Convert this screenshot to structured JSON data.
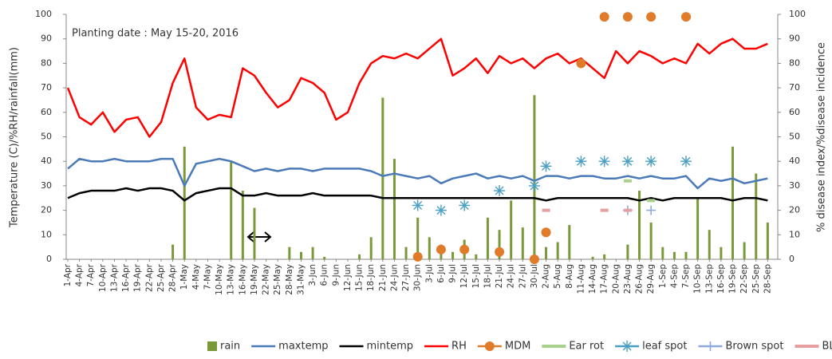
{
  "chart_data": {
    "type": "combo",
    "annotation": "Planting date : May 15-20, 2016",
    "y_label": "Temperature (C)/%RH/rainfall(mm)",
    "y2_label": "% disease index/%disease incidence",
    "categories": [
      "1-Apr",
      "4-Apr",
      "7-Apr",
      "10-Apr",
      "13-Apr",
      "16-Apr",
      "19-Apr",
      "22-Apr",
      "25-Apr",
      "28-Apr",
      "1-May",
      "4-May",
      "7-May",
      "10-May",
      "13-May",
      "16-May",
      "19-May",
      "22-May",
      "25-May",
      "28-May",
      "31-May",
      "3-Jun",
      "6-Jun",
      "9-Jun",
      "12-Jun",
      "15-Jun",
      "18-Jun",
      "21-Jun",
      "24-Jun",
      "27-Jun",
      "30-Jun",
      "3-Jul",
      "6-Jul",
      "9-Jul",
      "12-Jul",
      "15-Jul",
      "18-Jul",
      "21-Jul",
      "24-Jul",
      "27-Jul",
      "30-Jul",
      "2-Aug",
      "5-Aug",
      "8-Aug",
      "11-Aug",
      "14-Aug",
      "17-Aug",
      "20-Aug",
      "23-Aug",
      "26-Aug",
      "29-Aug",
      "1-Sep",
      "4-Sep",
      "7-Sep",
      "10-Sep",
      "13-Sep",
      "16-Sep",
      "19-Sep",
      "22-Sep",
      "25-Sep",
      "28-Sep"
    ],
    "ylim": [
      0,
      100
    ],
    "yticks": [
      0,
      10,
      20,
      30,
      40,
      50,
      60,
      70,
      80,
      90,
      100
    ],
    "y2lim": [
      0,
      100
    ],
    "y2ticks": [
      0,
      10,
      20,
      30,
      40,
      50,
      60,
      70,
      80,
      90,
      100
    ],
    "series": [
      {
        "name": "rain",
        "kind": "bar",
        "color": "#7a9a3a",
        "values": [
          0,
          0,
          0,
          0,
          0,
          0,
          0,
          0,
          0,
          6,
          46,
          0,
          0,
          0,
          40,
          28,
          21,
          0,
          0,
          5,
          3,
          5,
          1,
          0,
          0,
          2,
          9,
          66,
          41,
          5,
          17,
          9,
          6,
          3,
          8,
          2,
          17,
          12,
          24,
          13,
          67,
          5,
          7,
          14,
          0,
          1,
          2,
          0,
          6,
          28,
          15,
          5,
          3,
          3,
          25,
          12,
          5,
          46,
          7,
          35,
          15
        ]
      },
      {
        "name": "maxtemp",
        "kind": "line",
        "color": "#4a7ab8",
        "values": [
          37,
          41,
          40,
          40,
          41,
          40,
          40,
          40,
          41,
          41,
          30,
          39,
          40,
          41,
          40,
          38,
          36,
          37,
          36,
          37,
          37,
          36,
          37,
          37,
          37,
          37,
          36,
          34,
          35,
          34,
          33,
          34,
          31,
          33,
          34,
          35,
          33,
          34,
          33,
          34,
          32,
          34,
          34,
          33,
          34,
          34,
          33,
          33,
          34,
          33,
          34,
          33,
          33,
          34,
          29,
          33,
          32,
          33,
          31,
          32,
          33
        ]
      },
      {
        "name": "mintemp",
        "kind": "line",
        "color": "#000000",
        "values": [
          25,
          27,
          28,
          28,
          28,
          29,
          28,
          29,
          29,
          28,
          24,
          27,
          28,
          29,
          29,
          26,
          26,
          27,
          26,
          26,
          26,
          27,
          26,
          26,
          26,
          26,
          26,
          25,
          25,
          25,
          25,
          25,
          25,
          25,
          25,
          25,
          25,
          25,
          25,
          25,
          25,
          24,
          25,
          25,
          25,
          25,
          25,
          25,
          25,
          24,
          25,
          24,
          25,
          25,
          25,
          25,
          25,
          24,
          25,
          25,
          24
        ]
      },
      {
        "name": "RH",
        "kind": "line",
        "color": "#ff0000",
        "values": [
          70,
          58,
          55,
          60,
          52,
          57,
          58,
          50,
          56,
          72,
          82,
          62,
          57,
          59,
          58,
          78,
          75,
          68,
          62,
          65,
          74,
          72,
          68,
          57,
          60,
          72,
          80,
          83,
          82,
          84,
          82,
          86,
          90,
          75,
          78,
          82,
          76,
          83,
          80,
          82,
          78,
          82,
          84,
          80,
          82,
          78,
          74,
          85,
          80,
          85,
          83,
          80,
          82,
          80,
          88,
          84,
          88,
          90,
          86,
          86,
          88
        ]
      },
      {
        "name": "MDM",
        "kind": "circle",
        "axis": "y2",
        "color": "#e07b2a",
        "values": [
          null,
          null,
          null,
          null,
          null,
          null,
          null,
          null,
          null,
          null,
          null,
          null,
          null,
          null,
          null,
          null,
          null,
          null,
          null,
          null,
          null,
          null,
          null,
          null,
          null,
          null,
          null,
          null,
          null,
          null,
          1,
          null,
          4,
          null,
          4,
          null,
          null,
          3,
          null,
          null,
          0,
          11,
          null,
          null,
          80,
          null,
          99,
          null,
          99,
          null,
          99,
          null,
          null,
          99,
          null,
          null,
          null,
          null,
          null,
          null,
          null
        ]
      },
      {
        "name": "Ear rot",
        "kind": "dash",
        "axis": "y2",
        "color": "#a9d18e",
        "values": [
          null,
          null,
          null,
          null,
          null,
          null,
          null,
          null,
          null,
          null,
          null,
          null,
          null,
          null,
          null,
          null,
          null,
          null,
          null,
          null,
          null,
          null,
          null,
          null,
          null,
          null,
          null,
          null,
          null,
          null,
          null,
          null,
          null,
          null,
          null,
          null,
          null,
          null,
          null,
          null,
          null,
          null,
          null,
          null,
          null,
          null,
          null,
          null,
          32,
          null,
          24,
          null,
          null,
          null,
          null,
          null,
          null,
          null,
          null,
          null,
          null
        ]
      },
      {
        "name": "leaf spot",
        "kind": "asterisk",
        "axis": "y2",
        "color": "#4a9fc4",
        "values": [
          null,
          null,
          null,
          null,
          null,
          null,
          null,
          null,
          null,
          null,
          null,
          null,
          null,
          null,
          null,
          null,
          null,
          null,
          null,
          null,
          null,
          null,
          null,
          null,
          null,
          null,
          null,
          null,
          null,
          null,
          22,
          null,
          20,
          null,
          22,
          null,
          null,
          28,
          null,
          null,
          30,
          38,
          null,
          null,
          40,
          null,
          40,
          null,
          40,
          null,
          40,
          null,
          null,
          40,
          null,
          null,
          null,
          null,
          null,
          null,
          null
        ]
      },
      {
        "name": "Brown spot",
        "kind": "plus",
        "axis": "y2",
        "color": "#8eaadb",
        "values": [
          null,
          null,
          null,
          null,
          null,
          null,
          null,
          null,
          null,
          null,
          null,
          null,
          null,
          null,
          null,
          null,
          null,
          null,
          null,
          null,
          null,
          null,
          null,
          null,
          null,
          null,
          null,
          null,
          null,
          null,
          null,
          null,
          null,
          null,
          null,
          null,
          null,
          null,
          null,
          null,
          null,
          null,
          null,
          null,
          null,
          null,
          null,
          null,
          20,
          null,
          20,
          null,
          null,
          null,
          null,
          null,
          null,
          null,
          null,
          null,
          null
        ]
      },
      {
        "name": "BLSB",
        "kind": "dash",
        "axis": "y2",
        "color": "#e6a0a0",
        "values": [
          null,
          null,
          null,
          null,
          null,
          null,
          null,
          null,
          null,
          null,
          null,
          null,
          null,
          null,
          null,
          null,
          null,
          null,
          null,
          null,
          null,
          null,
          null,
          null,
          null,
          null,
          null,
          null,
          null,
          null,
          null,
          null,
          null,
          null,
          null,
          null,
          null,
          null,
          null,
          null,
          null,
          20,
          null,
          null,
          null,
          null,
          20,
          null,
          20,
          null,
          null,
          null,
          null,
          null,
          null,
          null,
          null,
          null,
          null,
          null,
          null
        ]
      }
    ]
  }
}
